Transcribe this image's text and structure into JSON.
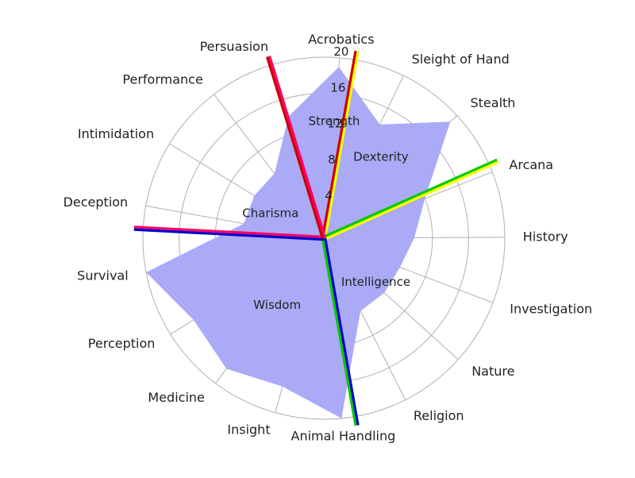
{
  "chart_data": {
    "type": "radar",
    "categories": [
      "Acrobatics",
      "Sleight of Hand",
      "Stealth",
      "Arcana",
      "History",
      "Investigation",
      "Nature",
      "Religion",
      "Animal Handling",
      "Insight",
      "Medicine",
      "Perception",
      "Survival",
      "Deception",
      "Intimidation",
      "Performance",
      "Persuasion"
    ],
    "values": [
      19,
      14,
      19,
      12,
      10,
      9,
      9,
      9,
      20,
      17,
      18,
      17,
      20,
      9,
      9,
      9,
      14
    ],
    "rlim": [
      0,
      20
    ],
    "r_ticks": [
      4,
      8,
      12,
      16,
      20
    ],
    "grid": true,
    "fill_color": "#aaaaf7",
    "group_labels": [
      {
        "text": "Strength",
        "angle_deg": 5,
        "r": 13
      },
      {
        "text": "Dexterity",
        "angle_deg": 35,
        "r": 11
      },
      {
        "text": "Intelligence",
        "angle_deg": 130,
        "r": 7.5
      },
      {
        "text": "Wisdom",
        "angle_deg": 215,
        "r": 9
      },
      {
        "text": "Charisma",
        "angle_deg": 295,
        "r": 6.5
      }
    ],
    "dividers": [
      {
        "angle_deg": 10,
        "r": 21,
        "colors": [
          "#ffff00",
          "#cc0000"
        ]
      },
      {
        "angle_deg": 66,
        "r": 21,
        "colors": [
          "#ffff00",
          "#00cc00"
        ]
      },
      {
        "angle_deg": 170,
        "r": 21,
        "colors": [
          "#00cc00",
          "#0000cc"
        ]
      },
      {
        "angle_deg": 273,
        "r": 21,
        "colors": [
          "#ff0066",
          "#0000cc"
        ]
      },
      {
        "angle_deg": 343,
        "r": 21,
        "colors": [
          "#ff0066",
          "#cc0000"
        ]
      }
    ]
  }
}
